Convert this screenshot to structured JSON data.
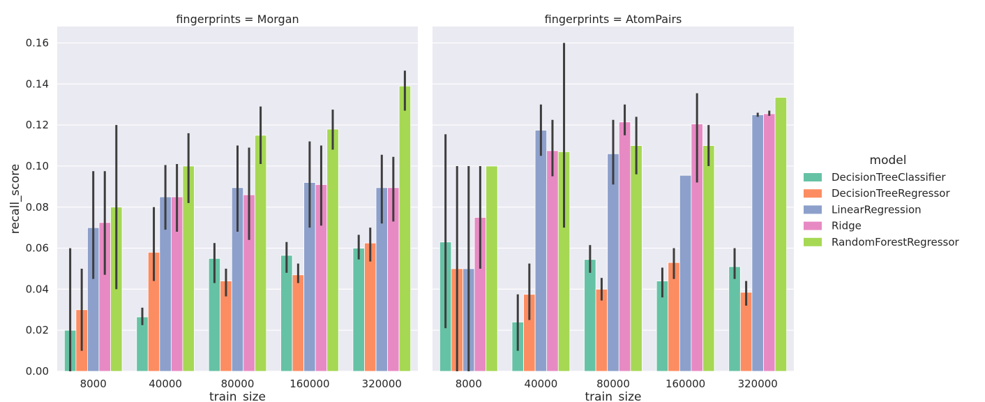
{
  "chart_data": {
    "type": "bar",
    "ylabel": "recall_score",
    "ylim": [
      0,
      0.168
    ],
    "yticks": [
      "0.00",
      "0.02",
      "0.04",
      "0.06",
      "0.08",
      "0.10",
      "0.12",
      "0.14",
      "0.16"
    ],
    "grid": true,
    "legend": {
      "title": "model",
      "placement": "right",
      "entries": [
        "DecisionTreeClassifier",
        "DecisionTreeRegressor",
        "LinearRegression",
        "Ridge",
        "RandomForestRegressor"
      ]
    },
    "colors": [
      "#66c2a5",
      "#fc8d62",
      "#8da0cb",
      "#e78ac3",
      "#a6d854"
    ],
    "panels": [
      {
        "title": "fingerprints = Morgan",
        "xlabel": "train_size",
        "categories": [
          "8000",
          "40000",
          "80000",
          "160000",
          "320000"
        ],
        "series": [
          {
            "name": "DecisionTreeClassifier",
            "values": [
              0.02,
              0.0265,
              0.055,
              0.0565,
              0.06
            ],
            "ci": [
              [
                0.0,
                0.06
              ],
              [
                0.0225,
                0.031
              ],
              [
                0.043,
                0.0625
              ],
              [
                0.048,
                0.063
              ],
              [
                0.0545,
                0.0665
              ]
            ]
          },
          {
            "name": "DecisionTreeRegressor",
            "values": [
              0.03,
              0.058,
              0.044,
              0.047,
              0.0625
            ],
            "ci": [
              [
                0.01,
                0.05
              ],
              [
                0.044,
                0.08
              ],
              [
                0.0365,
                0.05
              ],
              [
                0.043,
                0.0525
              ],
              [
                0.0535,
                0.07
              ]
            ]
          },
          {
            "name": "LinearRegression",
            "values": [
              0.07,
              0.085,
              0.0895,
              0.092,
              0.0895
            ],
            "ci": [
              [
                0.045,
                0.0975
              ],
              [
                0.069,
                0.1005
              ],
              [
                0.068,
                0.11
              ],
              [
                0.07,
                0.112
              ],
              [
                0.072,
                0.1055
              ]
            ]
          },
          {
            "name": "Ridge",
            "values": [
              0.0725,
              0.085,
              0.086,
              0.091,
              0.0895
            ],
            "ci": [
              [
                0.047,
                0.0975
              ],
              [
                0.068,
                0.101
              ],
              [
                0.064,
                0.109
              ],
              [
                0.071,
                0.11
              ],
              [
                0.073,
                0.1045
              ]
            ]
          },
          {
            "name": "RandomForestRegressor",
            "values": [
              0.08,
              0.1,
              0.115,
              0.118,
              0.139
            ],
            "ci": [
              [
                0.04,
                0.12
              ],
              [
                0.082,
                0.116
              ],
              [
                0.101,
                0.129
              ],
              [
                0.108,
                0.1275
              ],
              [
                0.127,
                0.1465
              ]
            ]
          }
        ]
      },
      {
        "title": "fingerprints = AtomPairs",
        "xlabel": "train_size",
        "categories": [
          "8000",
          "40000",
          "80000",
          "160000",
          "320000"
        ],
        "series": [
          {
            "name": "DecisionTreeClassifier",
            "values": [
              0.063,
              0.024,
              0.0545,
              0.044,
              0.051
            ],
            "ci": [
              [
                0.021,
                0.1155
              ],
              [
                0.01,
                0.0375
              ],
              [
                0.048,
                0.0615
              ],
              [
                0.036,
                0.0505
              ],
              [
                0.045,
                0.06
              ]
            ]
          },
          {
            "name": "DecisionTreeRegressor",
            "values": [
              0.05,
              0.0375,
              0.04,
              0.053,
              0.0385
            ],
            "ci": [
              [
                0.0,
                0.1
              ],
              [
                0.025,
                0.0525
              ],
              [
                0.0345,
                0.0455
              ],
              [
                0.045,
                0.06
              ],
              [
                0.032,
                0.044
              ]
            ]
          },
          {
            "name": "LinearRegression",
            "values": [
              0.05,
              0.1175,
              0.106,
              0.0955,
              0.125
            ],
            "ci": [
              [
                0.0,
                0.1
              ],
              [
                0.105,
                0.13
              ],
              [
                0.091,
                0.1225
              ],
              null,
              [
                0.124,
                0.126
              ]
            ]
          },
          {
            "name": "Ridge",
            "values": [
              0.075,
              0.1075,
              0.1215,
              0.1205,
              0.1255
            ],
            "ci": [
              [
                0.05,
                0.1
              ],
              [
                0.095,
                0.1225
              ],
              [
                0.115,
                0.13
              ],
              [
                0.092,
                0.1355
              ],
              [
                0.1245,
                0.127
              ]
            ]
          },
          {
            "name": "RandomForestRegressor",
            "values": [
              0.1,
              0.107,
              0.11,
              0.11,
              0.1335
            ],
            "ci": [
              null,
              [
                0.07,
                0.16
              ],
              [
                0.096,
                0.124
              ],
              [
                0.1,
                0.12
              ],
              null
            ]
          }
        ]
      }
    ]
  }
}
